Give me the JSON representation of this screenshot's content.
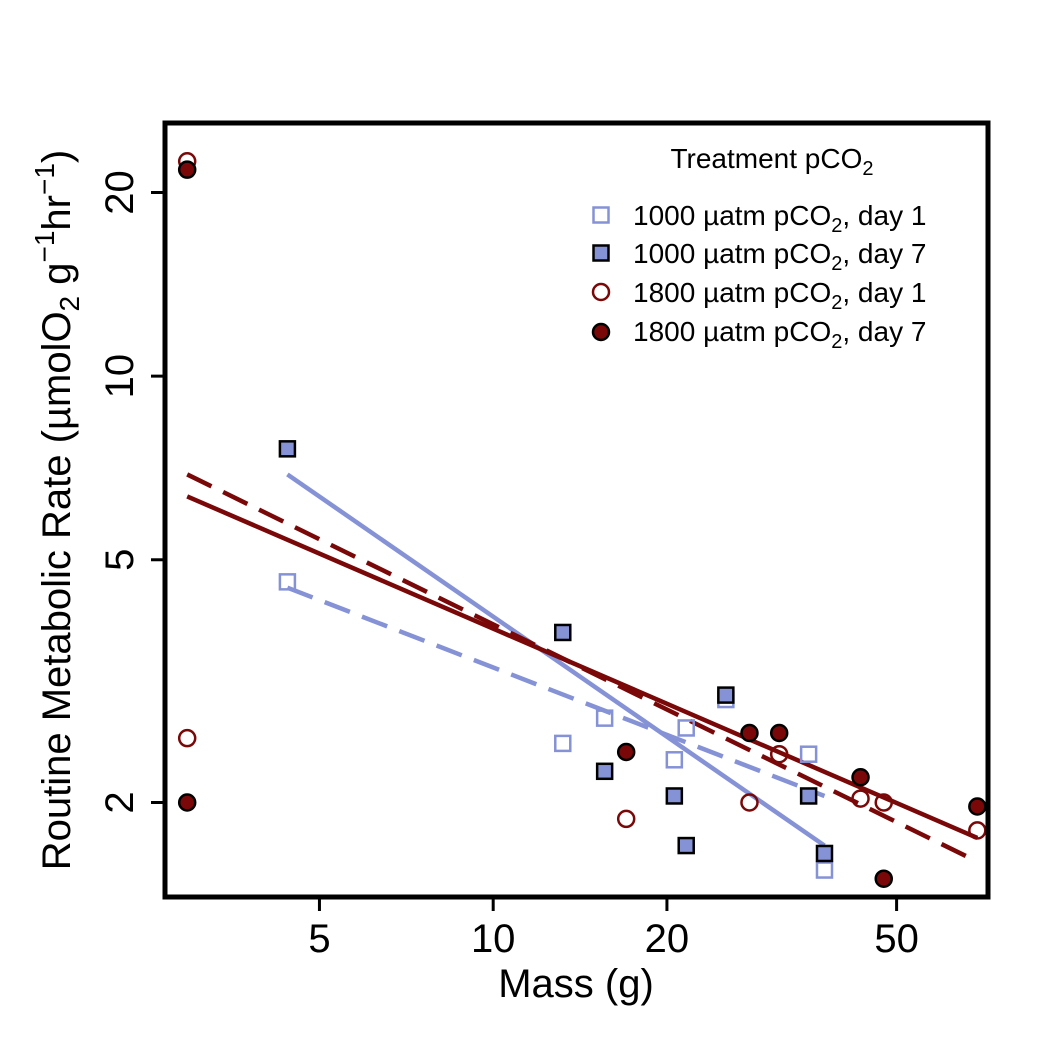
{
  "chart_data": {
    "type": "scatter",
    "log_x": true,
    "log_y": true,
    "xlim": [
      2.7,
      72
    ],
    "ylim": [
      1.4,
      26
    ],
    "x_ticks": [
      {
        "value": 5,
        "label": "5"
      },
      {
        "value": 10,
        "label": "10"
      },
      {
        "value": 20,
        "label": "20"
      },
      {
        "value": 50,
        "label": "50"
      }
    ],
    "y_ticks": [
      {
        "value": 2,
        "label": "2"
      },
      {
        "value": 5,
        "label": "5"
      },
      {
        "value": 10,
        "label": "10"
      },
      {
        "value": 20,
        "label": "20"
      }
    ],
    "xlabel": "Mass (g)",
    "ylabel": {
      "pre": "Routine Metabolic Rate (µmolO",
      "sub": "2",
      "mid1": " g",
      "sup1": "−1",
      "mid2": "hr",
      "sup2": "−1",
      "post": ")"
    },
    "legend": {
      "title": {
        "pre": "Treatment pCO",
        "sub": "2"
      },
      "placement": "top-right",
      "entries": [
        {
          "pre": "1000 µatm pCO",
          "sub": "2",
          "post": ", day 1"
        },
        {
          "pre": "1000 µatm pCO",
          "sub": "2",
          "post": ", day 7"
        },
        {
          "pre": "1800 µatm pCO",
          "sub": "2",
          "post": ", day 1"
        },
        {
          "pre": "1800 µatm pCO",
          "sub": "2",
          "post": ", day 7"
        }
      ]
    },
    "series": [
      {
        "marker": "square-open",
        "color": "#8592d6",
        "dash": true,
        "points": [
          [
            4.4,
            4.6
          ],
          [
            13.2,
            2.5
          ],
          [
            15.6,
            2.75
          ],
          [
            20.6,
            2.35
          ],
          [
            21.6,
            2.65
          ],
          [
            25.3,
            2.95
          ],
          [
            35.2,
            2.4
          ],
          [
            37.5,
            1.55
          ]
        ],
        "fit": {
          "x": [
            4.4,
            37.5
          ],
          "y": [
            4.5,
            2.05
          ]
        }
      },
      {
        "marker": "square-filled",
        "color": "#8592d6",
        "dash": false,
        "points": [
          [
            4.4,
            7.6
          ],
          [
            13.2,
            3.8
          ],
          [
            15.6,
            2.25
          ],
          [
            20.6,
            2.05
          ],
          [
            21.6,
            1.7
          ],
          [
            25.3,
            3.0
          ],
          [
            35.2,
            2.05
          ],
          [
            37.5,
            1.65
          ]
        ],
        "fit": {
          "x": [
            4.4,
            37.5
          ],
          "y": [
            6.9,
            1.7
          ]
        }
      },
      {
        "marker": "circle-open",
        "color": "#7a0808",
        "dash": true,
        "points": [
          [
            2.95,
            22.5
          ],
          [
            2.95,
            2.55
          ],
          [
            17.0,
            1.88
          ],
          [
            27.8,
            2.0
          ],
          [
            31.3,
            2.4
          ],
          [
            43.3,
            2.03
          ],
          [
            47.5,
            2.0
          ],
          [
            69.0,
            1.8
          ]
        ],
        "fit": {
          "x": [
            2.95,
            69.0
          ],
          "y": [
            6.9,
            1.6
          ]
        }
      },
      {
        "marker": "circle-filled",
        "color": "#7a0808",
        "dash": false,
        "points": [
          [
            2.95,
            21.8
          ],
          [
            2.95,
            2.0
          ],
          [
            17.0,
            2.42
          ],
          [
            27.8,
            2.6
          ],
          [
            31.3,
            2.6
          ],
          [
            43.3,
            2.2
          ],
          [
            47.5,
            1.5
          ],
          [
            69.0,
            1.97
          ]
        ],
        "fit": {
          "x": [
            2.95,
            69.0
          ],
          "y": [
            6.35,
            1.75
          ]
        }
      }
    ]
  }
}
